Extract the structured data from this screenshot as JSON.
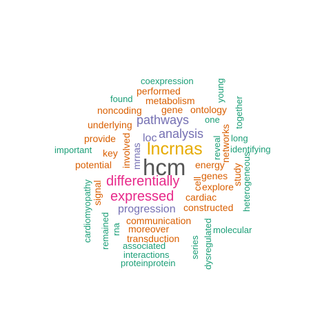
{
  "words": [
    {
      "text": "hcm",
      "color": "#555555"
    },
    {
      "text": "lncrnas",
      "color": "#e6ab02"
    },
    {
      "text": "differentially",
      "color": "#e7298a"
    },
    {
      "text": "expressed",
      "color": "#e7298a"
    },
    {
      "text": "pathways",
      "color": "#7570b3"
    },
    {
      "text": "analysis",
      "color": "#7570b3"
    },
    {
      "text": "progression",
      "color": "#7570b3"
    },
    {
      "text": "loc",
      "color": "#7570b3"
    },
    {
      "text": "mrnas",
      "color": "#7570b3"
    },
    {
      "text": "coexpression",
      "color": "#1b9e77"
    },
    {
      "text": "performed",
      "color": "#d95f02"
    },
    {
      "text": "found",
      "color": "#1b9e77"
    },
    {
      "text": "metabolism",
      "color": "#d95f02"
    },
    {
      "text": "noncoding",
      "color": "#d95f02"
    },
    {
      "text": "gene",
      "color": "#d95f02"
    },
    {
      "text": "ontology",
      "color": "#d95f02"
    },
    {
      "text": "underlying",
      "color": "#d95f02"
    },
    {
      "text": "one",
      "color": "#1b9e77"
    },
    {
      "text": "young",
      "color": "#1b9e77"
    },
    {
      "text": "together",
      "color": "#1b9e77"
    },
    {
      "text": "provide",
      "color": "#d95f02"
    },
    {
      "text": "long",
      "color": "#1b9e77"
    },
    {
      "text": "important",
      "color": "#1b9e77"
    },
    {
      "text": "key",
      "color": "#d95f02"
    },
    {
      "text": "involved",
      "color": "#d95f02"
    },
    {
      "text": "reveal",
      "color": "#1b9e77"
    },
    {
      "text": "networks",
      "color": "#d95f02"
    },
    {
      "text": "identifying",
      "color": "#1b9e77"
    },
    {
      "text": "potential",
      "color": "#d95f02"
    },
    {
      "text": "energy",
      "color": "#d95f02"
    },
    {
      "text": "study",
      "color": "#d95f02"
    },
    {
      "text": "genes",
      "color": "#d95f02"
    },
    {
      "text": "heterogeneous",
      "color": "#1b9e77"
    },
    {
      "text": "cell",
      "color": "#d95f02"
    },
    {
      "text": "explore",
      "color": "#d95f02"
    },
    {
      "text": "signal",
      "color": "#d95f02"
    },
    {
      "text": "cardiomyopathy",
      "color": "#1b9e77"
    },
    {
      "text": "cardiac",
      "color": "#d95f02"
    },
    {
      "text": "constructed",
      "color": "#d95f02"
    },
    {
      "text": "remained",
      "color": "#1b9e77"
    },
    {
      "text": "rna",
      "color": "#1b9e77"
    },
    {
      "text": "communication",
      "color": "#d95f02"
    },
    {
      "text": "moreover",
      "color": "#d95f02"
    },
    {
      "text": "series",
      "color": "#1b9e77"
    },
    {
      "text": "molecular",
      "color": "#1b9e77"
    },
    {
      "text": "transduction",
      "color": "#d95f02"
    },
    {
      "text": "dysregulated",
      "color": "#1b9e77"
    },
    {
      "text": "associated",
      "color": "#1b9e77"
    },
    {
      "text": "interactions",
      "color": "#1b9e77"
    },
    {
      "text": "proteinprotein",
      "color": "#1b9e77"
    }
  ]
}
